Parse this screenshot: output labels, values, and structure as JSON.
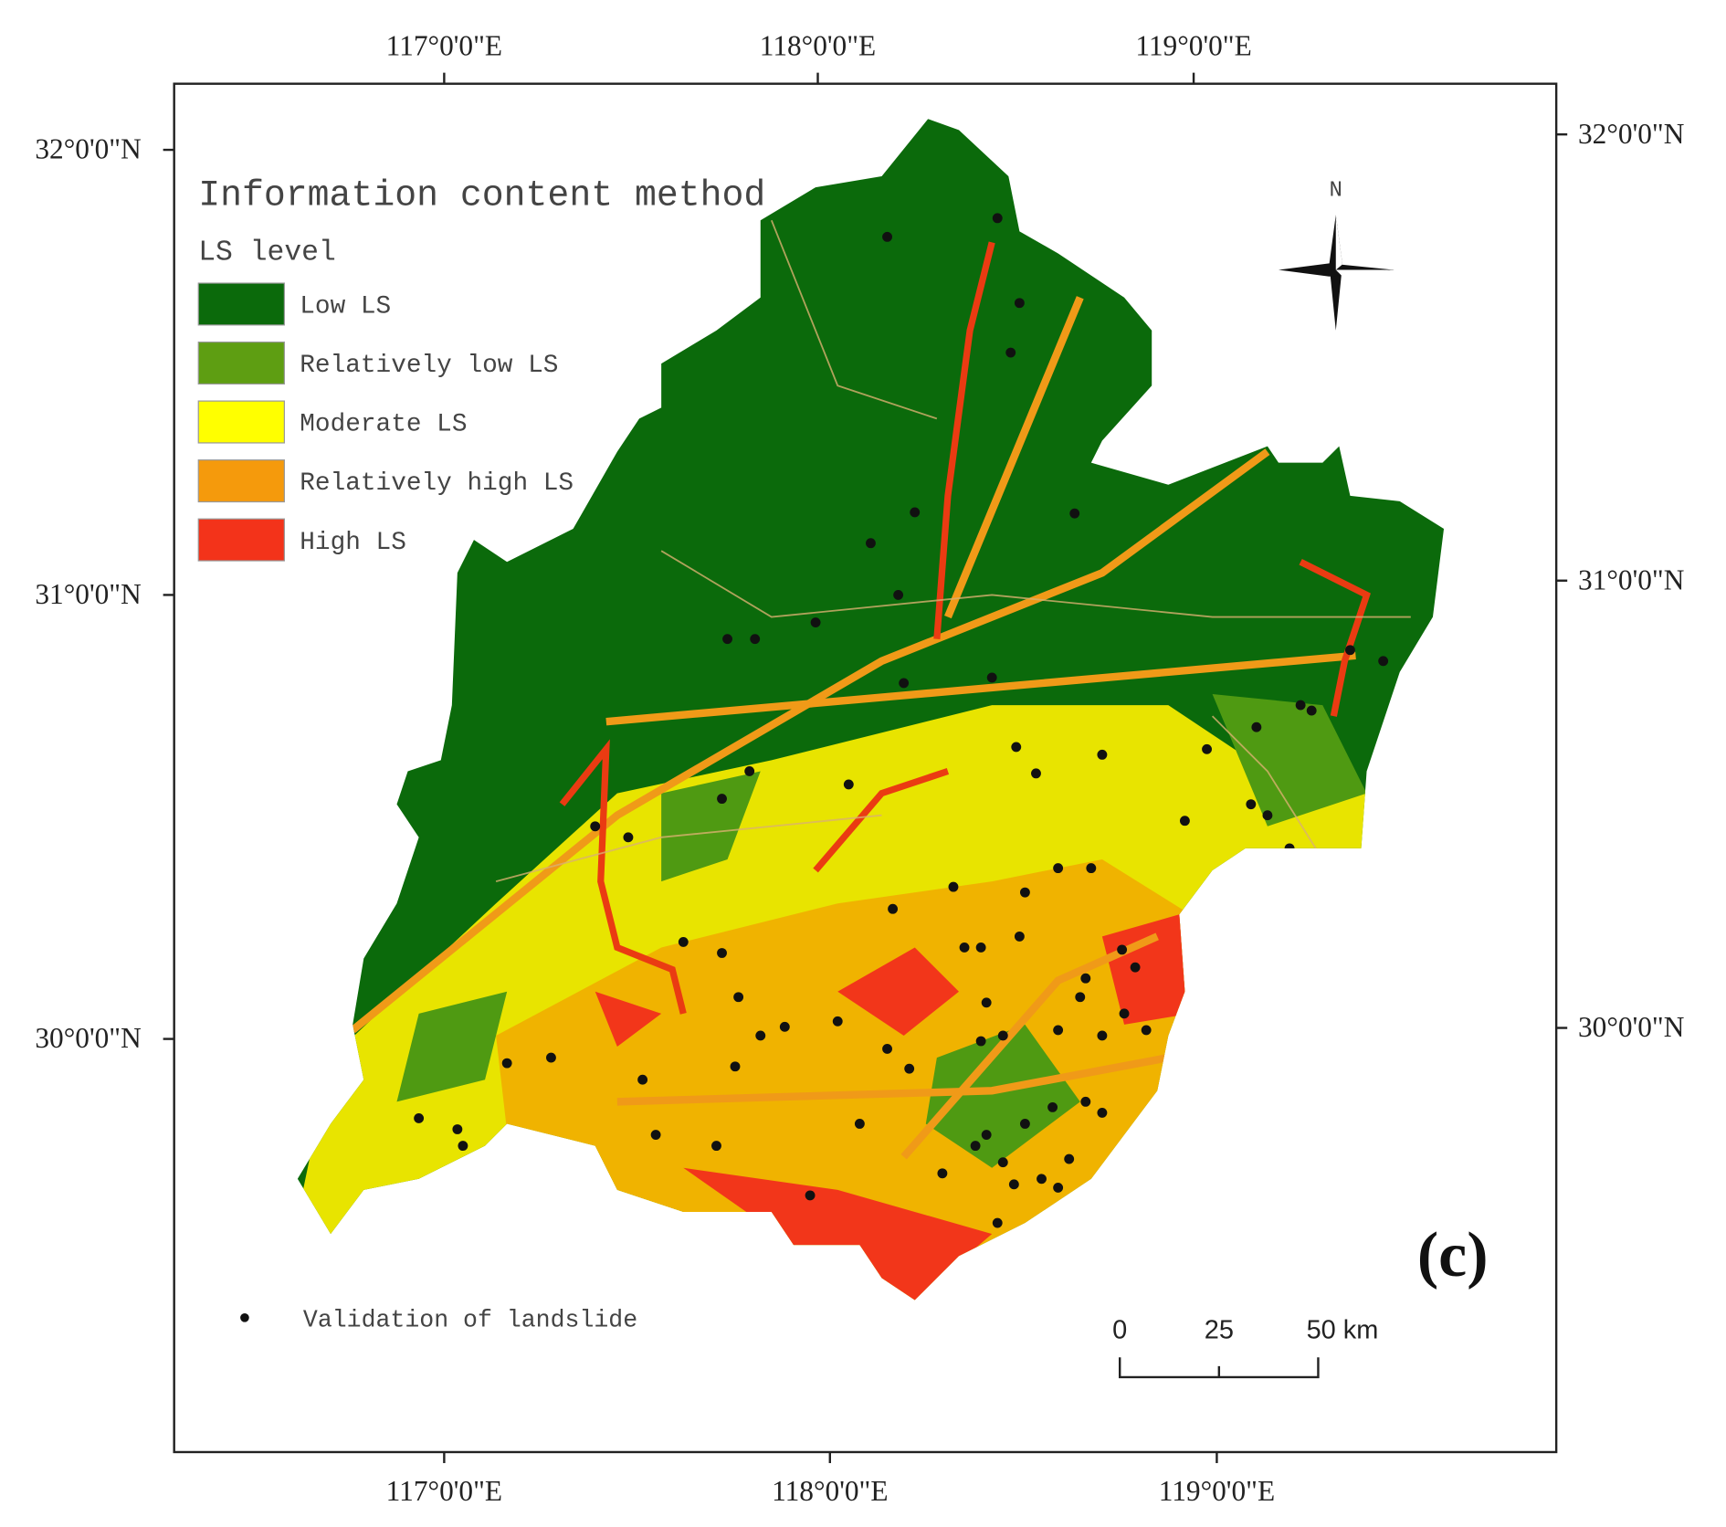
{
  "title": "Information content method",
  "legend": {
    "title": "LS level",
    "items": [
      "Low LS",
      "Relatively low LS",
      "Moderate LS",
      "Relatively high LS",
      "High LS"
    ]
  },
  "validation": "Validation of  landslide",
  "panel_label": "(c)",
  "north": "N",
  "scale_bar": [
    "0",
    "25",
    "50 km"
  ],
  "axes": {
    "top": [
      "117°0'0\"E",
      "118°0'0\"E",
      "119°0'0\"E"
    ],
    "bottom": [
      "117°0'0\"E",
      "118°0'0\"E",
      "119°0'0\"E"
    ],
    "left": [
      "32°0'0\"N",
      "31°0'0\"N",
      "30°0'0\"N"
    ],
    "right": [
      "32°0'0\"N",
      "31°0'0\"N",
      "30°0'0\"N"
    ]
  }
}
